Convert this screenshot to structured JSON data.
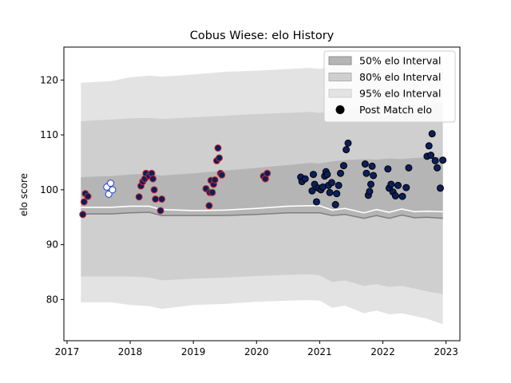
{
  "chart_data": {
    "type": "scatter",
    "title": "Cobus Wiese: elo History",
    "xlabel": "",
    "ylabel": "elo score",
    "xlim": [
      2016.95,
      2023.22
    ],
    "ylim": [
      72.5,
      126
    ],
    "x_ticks": [
      2017,
      2018,
      2019,
      2020,
      2021,
      2022,
      2023
    ],
    "y_ticks": [
      80,
      90,
      100,
      110,
      120
    ],
    "legend": {
      "position": "top-right",
      "entries": [
        "50% elo Interval",
        "80% elo Interval",
        "95% elo Interval",
        "Post Match elo"
      ]
    },
    "colors": {
      "band95": "#e3e3e3",
      "band80": "#cfcfcf",
      "band50": "#b5b5b5",
      "median": "#ffffff",
      "lower50_line": "#7f7f7f",
      "point_navy": "#0b1f5c",
      "edge_red": "#d62728",
      "edge_blue": "#1f3fd6",
      "white": "#ffffff"
    },
    "bands": {
      "x": [
        2017.22,
        2017.7,
        2018.0,
        2018.3,
        2018.5,
        2019.0,
        2019.5,
        2020.0,
        2020.5,
        2020.85,
        2021.0,
        2021.2,
        2021.4,
        2021.7,
        2021.9,
        2022.1,
        2022.3,
        2022.5,
        2022.7,
        2022.95
      ],
      "lower95": [
        79.5,
        79.5,
        79.0,
        78.8,
        78.3,
        79.0,
        79.2,
        79.6,
        79.8,
        79.9,
        79.8,
        78.5,
        78.9,
        77.5,
        78.0,
        77.3,
        77.5,
        77.0,
        76.5,
        75.5
      ],
      "upper95": [
        119.5,
        119.8,
        120.5,
        120.8,
        120.6,
        121.0,
        121.5,
        121.7,
        122.0,
        122.2,
        122.0,
        122.5,
        122.7,
        123.0,
        122.8,
        123.2,
        123.0,
        123.2,
        123.5,
        123.8
      ],
      "lower80": [
        84.2,
        84.2,
        84.2,
        84.0,
        83.5,
        83.8,
        84.0,
        84.3,
        84.5,
        84.6,
        84.4,
        83.2,
        83.5,
        82.5,
        82.8,
        82.3,
        82.5,
        82.0,
        81.5,
        81.0
      ],
      "upper80": [
        112.5,
        112.8,
        113.0,
        113.1,
        112.9,
        113.2,
        113.5,
        113.8,
        114.0,
        114.2,
        114.0,
        114.5,
        114.6,
        115.0,
        114.9,
        115.2,
        115.0,
        115.3,
        115.5,
        115.8
      ],
      "lower50": [
        95.6,
        95.6,
        95.8,
        95.9,
        95.3,
        95.3,
        95.3,
        95.5,
        95.8,
        95.8,
        95.8,
        95.3,
        95.5,
        94.8,
        95.3,
        94.8,
        95.4,
        94.9,
        95.0,
        94.8
      ],
      "upper50": [
        102.3,
        102.5,
        102.8,
        102.9,
        102.6,
        103.0,
        103.5,
        104.0,
        104.5,
        104.9,
        104.8,
        105.2,
        105.4,
        105.6,
        105.5,
        105.7,
        105.6,
        105.8,
        105.9,
        106.0
      ],
      "median": [
        96.8,
        96.8,
        97.0,
        97.0,
        96.4,
        96.2,
        96.3,
        96.6,
        97.0,
        97.1,
        97.1,
        96.3,
        96.6,
        95.8,
        96.4,
        95.9,
        96.5,
        96.0,
        96.1,
        96.0
      ]
    },
    "series": [
      {
        "name": "Post Match elo",
        "style": "red-edge",
        "points": [
          [
            2017.25,
            95.5
          ],
          [
            2017.27,
            97.8
          ],
          [
            2017.29,
            99.3
          ],
          [
            2017.33,
            98.8
          ],
          [
            2018.14,
            98.7
          ],
          [
            2018.17,
            100.7
          ],
          [
            2018.2,
            101.5
          ],
          [
            2018.23,
            102.0
          ],
          [
            2018.25,
            103.0
          ],
          [
            2018.3,
            102.5
          ],
          [
            2018.34,
            103.0
          ],
          [
            2018.36,
            102.0
          ],
          [
            2018.38,
            100.0
          ],
          [
            2018.4,
            98.3
          ],
          [
            2018.48,
            96.2
          ],
          [
            2018.5,
            98.3
          ],
          [
            2019.2,
            100.2
          ],
          [
            2019.25,
            97.1
          ],
          [
            2019.26,
            99.5
          ],
          [
            2019.28,
            101.7
          ],
          [
            2019.3,
            99.5
          ],
          [
            2019.32,
            101.0
          ],
          [
            2019.34,
            101.8
          ],
          [
            2019.37,
            105.3
          ],
          [
            2019.39,
            107.6
          ],
          [
            2019.41,
            105.8
          ],
          [
            2019.43,
            103.0
          ],
          [
            2019.45,
            102.7
          ],
          [
            2020.11,
            102.5
          ],
          [
            2020.14,
            102.0
          ],
          [
            2020.17,
            103.0
          ]
        ]
      },
      {
        "name": "Post Match elo",
        "style": "blue-edge",
        "points": [
          [
            2017.63,
            100.5
          ],
          [
            2017.66,
            99.2
          ],
          [
            2017.69,
            101.2
          ],
          [
            2017.72,
            100.0
          ]
        ]
      },
      {
        "name": "Post Match elo",
        "style": "navy",
        "points": [
          [
            2020.7,
            102.3
          ],
          [
            2020.72,
            101.5
          ],
          [
            2020.77,
            102.0
          ],
          [
            2020.88,
            99.8
          ],
          [
            2020.9,
            102.8
          ],
          [
            2020.92,
            101.0
          ],
          [
            2020.95,
            97.8
          ],
          [
            2020.98,
            100.3
          ],
          [
            2021.02,
            100.0
          ],
          [
            2021.05,
            100.5
          ],
          [
            2021.08,
            102.5
          ],
          [
            2021.1,
            103.3
          ],
          [
            2021.12,
            102.8
          ],
          [
            2021.14,
            100.8
          ],
          [
            2021.16,
            99.5
          ],
          [
            2021.19,
            101.3
          ],
          [
            2021.25,
            97.3
          ],
          [
            2021.27,
            99.3
          ],
          [
            2021.3,
            100.8
          ],
          [
            2021.33,
            103.0
          ],
          [
            2021.38,
            104.4
          ],
          [
            2021.42,
            107.3
          ],
          [
            2021.45,
            108.5
          ],
          [
            2021.72,
            104.7
          ],
          [
            2021.74,
            103.0
          ],
          [
            2021.77,
            99.0
          ],
          [
            2021.79,
            99.7
          ],
          [
            2021.81,
            101.0
          ],
          [
            2021.83,
            104.3
          ],
          [
            2021.85,
            102.6
          ],
          [
            2022.08,
            103.8
          ],
          [
            2022.1,
            100.3
          ],
          [
            2022.13,
            101.0
          ],
          [
            2022.16,
            99.6
          ],
          [
            2022.2,
            98.9
          ],
          [
            2022.24,
            100.8
          ],
          [
            2022.31,
            98.8
          ],
          [
            2022.37,
            100.4
          ],
          [
            2022.41,
            104.0
          ],
          [
            2022.7,
            106.1
          ],
          [
            2022.73,
            108.0
          ],
          [
            2022.76,
            106.3
          ],
          [
            2022.78,
            110.2
          ],
          [
            2022.83,
            105.3
          ],
          [
            2022.86,
            104.0
          ],
          [
            2022.91,
            100.3
          ],
          [
            2022.95,
            105.4
          ]
        ]
      }
    ]
  }
}
